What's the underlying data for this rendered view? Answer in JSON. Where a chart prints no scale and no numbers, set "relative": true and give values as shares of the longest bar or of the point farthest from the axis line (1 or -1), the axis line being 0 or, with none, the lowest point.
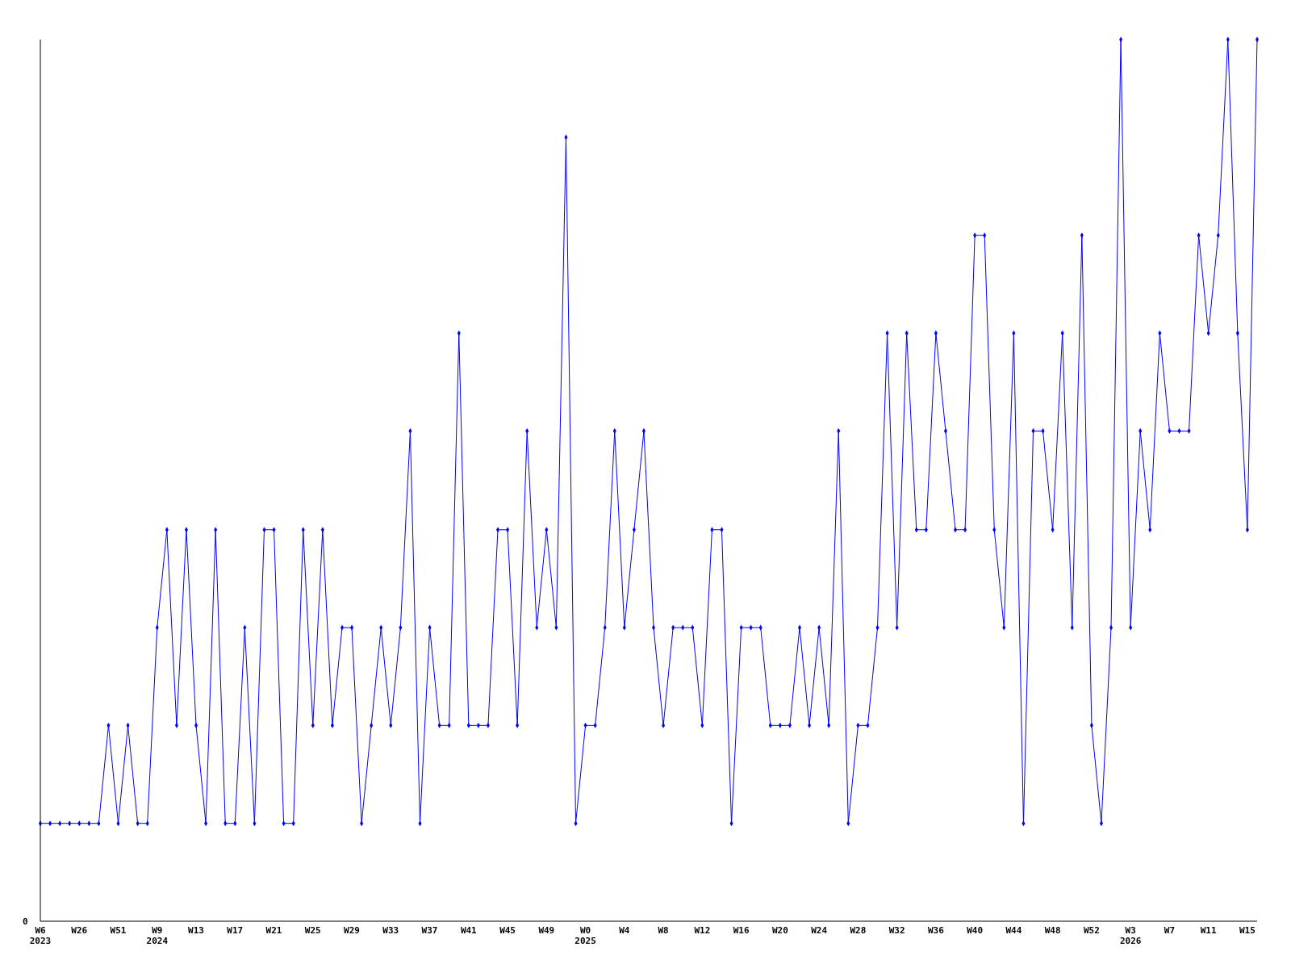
{
  "chart_data": {
    "type": "line",
    "relative": true,
    "marker": "diamond",
    "line_style": "solid",
    "annotations": [
      "0"
    ],
    "categories": [
      "W6\n2023",
      null,
      null,
      null,
      "W26",
      null,
      null,
      null,
      "W51",
      null,
      null,
      null,
      "W9\n2024",
      null,
      null,
      null,
      "W13",
      null,
      null,
      null,
      "W17",
      null,
      null,
      null,
      "W21",
      null,
      null,
      null,
      "W25",
      null,
      null,
      null,
      "W29",
      null,
      null,
      null,
      "W33",
      null,
      null,
      null,
      "W37",
      null,
      null,
      null,
      "W41",
      null,
      null,
      null,
      "W45",
      null,
      null,
      null,
      "W49",
      null,
      null,
      null,
      "W0\n2025",
      null,
      null,
      null,
      "W4",
      null,
      null,
      null,
      "W8",
      null,
      null,
      null,
      "W12",
      null,
      null,
      null,
      "W16",
      null,
      null,
      null,
      "W20",
      null,
      null,
      null,
      "W24",
      null,
      null,
      null,
      "W28",
      null,
      null,
      null,
      "W32",
      null,
      null,
      null,
      "W36",
      null,
      null,
      null,
      "W40",
      null,
      null,
      null,
      "W44",
      null,
      null,
      null,
      "W48",
      null,
      null,
      null,
      "W52",
      null,
      null,
      null,
      "W3\n2026",
      null,
      null,
      null,
      "W7",
      null,
      null,
      null,
      "W11",
      null,
      null,
      null,
      "W15",
      null
    ],
    "series": [
      {
        "color": "#0000ff",
        "values": [
          0.111,
          0.111,
          0.111,
          0.111,
          0.111,
          0.111,
          0.111,
          0.222,
          0.111,
          0.222,
          0.111,
          0.111,
          0.333,
          0.444,
          0.222,
          0.444,
          0.222,
          0.111,
          0.444,
          0.111,
          0.111,
          0.333,
          0.111,
          0.444,
          0.444,
          0.111,
          0.111,
          0.444,
          0.222,
          0.444,
          0.222,
          0.333,
          0.333,
          0.111,
          0.222,
          0.333,
          0.222,
          0.333,
          0.556,
          0.111,
          0.333,
          0.222,
          0.222,
          0.667,
          0.222,
          0.222,
          0.222,
          0.444,
          0.444,
          0.222,
          0.556,
          0.333,
          0.444,
          0.333,
          0.889,
          0.111,
          0.222,
          0.222,
          0.333,
          0.556,
          0.333,
          0.444,
          0.556,
          0.333,
          0.222,
          0.333,
          0.333,
          0.333,
          0.222,
          0.444,
          0.444,
          0.111,
          0.333,
          0.333,
          0.333,
          0.222,
          0.222,
          0.222,
          0.333,
          0.222,
          0.333,
          0.222,
          0.556,
          0.111,
          0.222,
          0.222,
          0.333,
          0.667,
          0.333,
          0.667,
          0.444,
          0.444,
          0.667,
          0.556,
          0.444,
          0.444,
          0.778,
          0.778,
          0.444,
          0.333,
          0.667,
          0.111,
          0.556,
          0.556,
          0.444,
          0.667,
          0.333,
          0.778,
          0.222,
          0.111,
          0.333,
          1,
          0.333,
          0.556,
          0.444,
          0.667,
          0.556,
          0.556,
          0.556,
          0.778,
          0.667,
          0.778,
          1,
          0.667,
          0.444,
          1
        ]
      }
    ]
  }
}
